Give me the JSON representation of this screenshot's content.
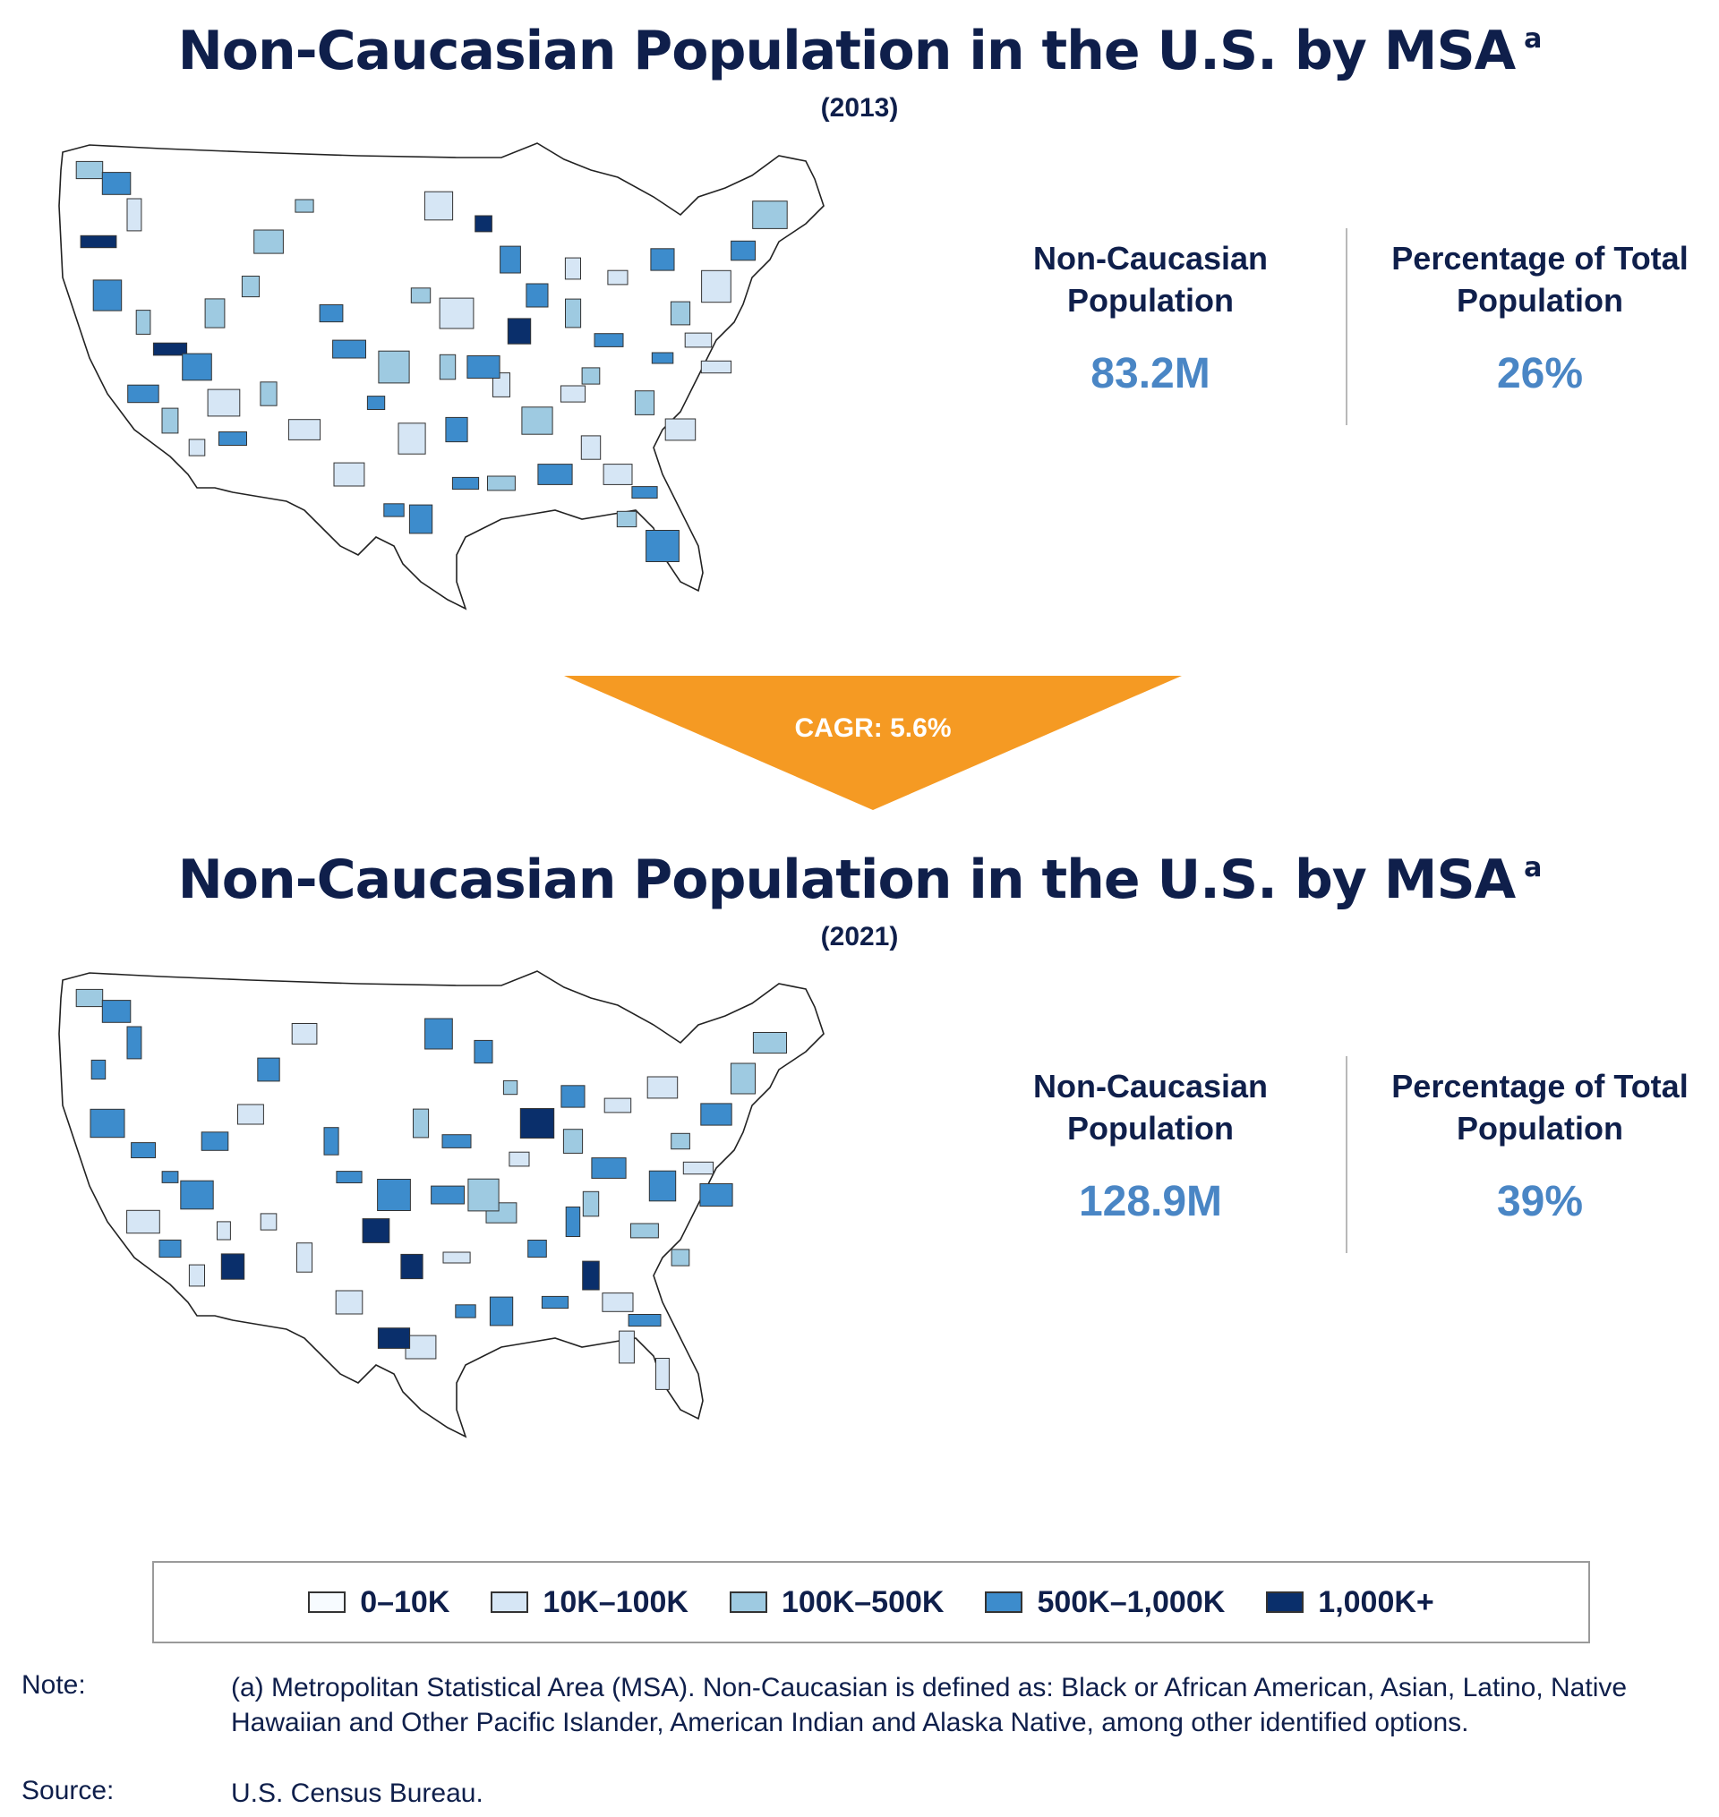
{
  "colors": {
    "bin_0": "#f7fbff",
    "bin_1": "#d6e6f5",
    "bin_2": "#9ecae1",
    "bin_3": "#3d8ccc",
    "bin_4": "#0a2f6b",
    "arrow": "#f59a23",
    "value_text": "#4a86c5",
    "title_text": "#0f1f4b"
  },
  "panels": [
    {
      "title": "Non-Caucasian Population in the U.S. by MSA",
      "title_note": "a",
      "year": "(2013)",
      "stat1_label_line1": "Non-Caucasian",
      "stat1_label_line2": "Population",
      "stat1_value": "83.2M",
      "stat2_label_line1": "Percentage of Total",
      "stat2_label_line2": "Population",
      "stat2_value": "26%"
    },
    {
      "title": "Non-Caucasian Population in the U.S. by MSA",
      "title_note": "a",
      "year": "(2021)",
      "stat1_label_line1": "Non-Caucasian",
      "stat1_label_line2": "Population",
      "stat1_value": "128.9M",
      "stat2_label_line1": "Percentage of Total",
      "stat2_label_line2": "Population",
      "stat2_value": "39%"
    }
  ],
  "growth": {
    "label": "CAGR: 5.6%"
  },
  "legend": [
    {
      "label": "0–10K",
      "bin": 0
    },
    {
      "label": "10K–100K",
      "bin": 1
    },
    {
      "label": "100K–500K",
      "bin": 2
    },
    {
      "label": "500K–1,000K",
      "bin": 3
    },
    {
      "label": "1,000K+",
      "bin": 4
    }
  ],
  "notes": {
    "note_key": "Note:",
    "note_text": "(a) Metropolitan Statistical Area (MSA). Non-Caucasian is defined as: Black or African American, Asian, Latino, Native Hawaiian and Other Pacific Islander, American Indian and Alaska Native, among other identified options.",
    "source_key": "Source:",
    "source_text": "U.S. Census Bureau."
  }
}
